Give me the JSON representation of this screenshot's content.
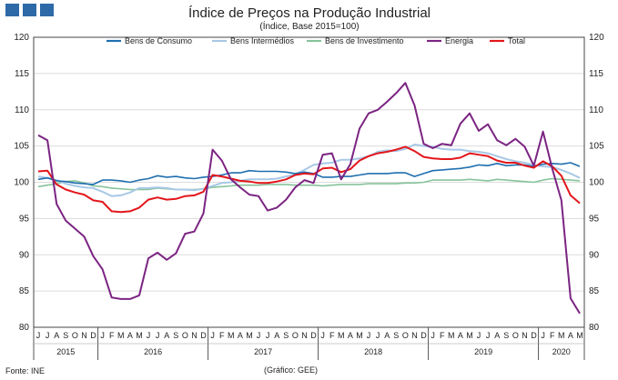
{
  "header": {
    "title": "Índice de Preços na Produção Industrial",
    "subtitle": "(Índice, Base 2015=100)"
  },
  "footer": {
    "source": "Fonte: INE",
    "credit": "(Gráfico: GEE)"
  },
  "colors": {
    "logo": "#2e6aa8",
    "bens_consumo": "#1f6fb0",
    "bens_intermedios": "#a8c8e6",
    "bens_investimento": "#86c39a",
    "energia": "#7b2482",
    "total": "#e3161b"
  },
  "chart_data": {
    "type": "line",
    "ylim": [
      80,
      120
    ],
    "yticks": [
      "80",
      "85",
      "90",
      "95",
      "100",
      "105",
      "110",
      "115",
      "120"
    ],
    "grid": "horizontal",
    "legend_position": "top",
    "month_labels": [
      "J",
      "J",
      "A",
      "S",
      "O",
      "N",
      "D",
      "J",
      "F",
      "M",
      "A",
      "M",
      "J",
      "J",
      "A",
      "S",
      "O",
      "N",
      "D",
      "J",
      "F",
      "M",
      "A",
      "M",
      "J",
      "J",
      "A",
      "S",
      "O",
      "N",
      "D",
      "J",
      "F",
      "M",
      "A",
      "M",
      "J",
      "J",
      "A",
      "S",
      "O",
      "N",
      "D",
      "J",
      "F",
      "M",
      "A",
      "M",
      "J",
      "J",
      "A",
      "S",
      "O",
      "N",
      "D",
      "J",
      "F",
      "M",
      "A",
      "M"
    ],
    "year_labels": [
      {
        "label": "2015",
        "start": 0,
        "end": 6
      },
      {
        "label": "2016",
        "start": 7,
        "end": 18
      },
      {
        "label": "2017",
        "start": 19,
        "end": 30
      },
      {
        "label": "2018",
        "start": 31,
        "end": 42
      },
      {
        "label": "2019",
        "start": 43,
        "end": 54
      },
      {
        "label": "2020",
        "start": 55,
        "end": 59
      }
    ],
    "series": [
      {
        "name": "Bens de Consumo",
        "color_key": "bens_consumo",
        "values": [
          100.4,
          100.6,
          100.2,
          100.1,
          99.9,
          99.8,
          99.7,
          100.3,
          100.3,
          100.2,
          100.0,
          100.3,
          100.5,
          100.9,
          100.7,
          100.8,
          100.6,
          100.5,
          100.7,
          100.8,
          101.0,
          101.3,
          101.3,
          101.6,
          101.5,
          101.5,
          101.5,
          101.4,
          101.2,
          101.4,
          101.2,
          100.7,
          100.7,
          100.8,
          100.8,
          101.0,
          101.2,
          101.2,
          101.2,
          101.3,
          101.3,
          100.8,
          101.2,
          101.6,
          101.7,
          101.8,
          101.9,
          102.1,
          102.4,
          102.3,
          102.6,
          102.3,
          102.4,
          102.4,
          102.2,
          102.5,
          102.6,
          102.5,
          102.7,
          102.2
        ]
      },
      {
        "name": "Bens Intermédios",
        "color_key": "bens_intermedios",
        "values": [
          100.8,
          100.6,
          100.3,
          99.8,
          99.5,
          99.3,
          99.2,
          98.7,
          98.1,
          98.2,
          98.6,
          99.2,
          99.2,
          99.3,
          99.2,
          99.0,
          99.0,
          98.9,
          99.1,
          99.5,
          99.9,
          100.0,
          100.2,
          100.4,
          100.4,
          100.4,
          100.5,
          100.8,
          101.1,
          101.7,
          102.4,
          102.6,
          102.7,
          103.1,
          103.1,
          103.3,
          103.6,
          104.2,
          104.4,
          104.3,
          104.6,
          105.2,
          105.0,
          104.9,
          104.6,
          104.5,
          104.5,
          104.3,
          104.2,
          104.0,
          103.6,
          103.2,
          102.9,
          102.7,
          102.4,
          102.2,
          102.1,
          101.7,
          101.2,
          100.6
        ]
      },
      {
        "name": "Bens de Investimento",
        "color_key": "bens_investimento",
        "values": [
          99.4,
          99.6,
          99.8,
          100.1,
          100.2,
          99.9,
          99.5,
          99.4,
          99.2,
          99.1,
          99.0,
          99.0,
          99.0,
          99.2,
          99.1,
          99.0,
          99.0,
          99.0,
          99.1,
          99.3,
          99.4,
          99.5,
          99.6,
          99.6,
          99.6,
          99.7,
          99.7,
          99.7,
          99.6,
          99.6,
          99.6,
          99.5,
          99.6,
          99.7,
          99.7,
          99.7,
          99.8,
          99.8,
          99.8,
          99.8,
          99.9,
          99.9,
          100.0,
          100.3,
          100.3,
          100.3,
          100.3,
          100.4,
          100.3,
          100.2,
          100.4,
          100.3,
          100.2,
          100.1,
          100.0,
          100.3,
          100.5,
          100.4,
          100.3,
          100.2
        ]
      },
      {
        "name": "Energia",
        "color_key": "energia",
        "values": [
          106.5,
          105.8,
          97.0,
          94.7,
          93.6,
          92.5,
          89.8,
          88.0,
          84.1,
          83.9,
          83.9,
          84.4,
          89.5,
          90.3,
          89.3,
          90.2,
          92.9,
          93.2,
          95.7,
          104.5,
          103.0,
          100.4,
          99.3,
          98.3,
          98.1,
          96.1,
          96.5,
          97.6,
          99.3,
          100.3,
          99.9,
          103.8,
          104.0,
          100.4,
          102.5,
          107.4,
          109.5,
          110.0,
          111.1,
          112.3,
          113.7,
          110.6,
          105.3,
          104.7,
          105.3,
          105.1,
          108.1,
          109.5,
          107.1,
          108.0,
          105.8,
          105.1,
          106.0,
          104.9,
          102.3,
          107.0,
          101.9,
          97.5,
          84.0,
          81.9
        ]
      },
      {
        "name": "Total",
        "color_key": "total",
        "values": [
          101.5,
          101.6,
          99.7,
          99.0,
          98.6,
          98.3,
          97.5,
          97.3,
          96.0,
          95.9,
          96.0,
          96.5,
          97.6,
          97.9,
          97.6,
          97.7,
          98.1,
          98.2,
          98.7,
          101.0,
          100.8,
          100.5,
          100.2,
          100.1,
          99.9,
          99.9,
          100.1,
          100.4,
          101.0,
          101.2,
          101.1,
          101.9,
          102.0,
          101.4,
          101.8,
          103.0,
          103.6,
          104.0,
          104.2,
          104.5,
          104.9,
          104.3,
          103.5,
          103.3,
          103.2,
          103.2,
          103.4,
          104.0,
          103.8,
          103.6,
          103.0,
          102.7,
          102.7,
          102.3,
          102.0,
          102.9,
          102.2,
          100.9,
          98.2,
          97.1
        ]
      }
    ]
  }
}
